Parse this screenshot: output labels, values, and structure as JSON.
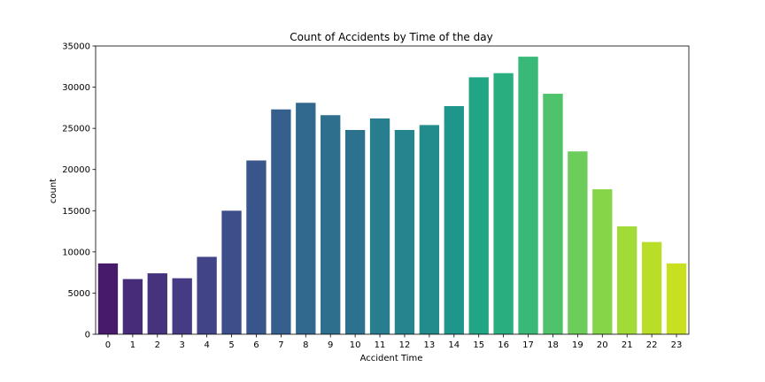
{
  "chart_data": {
    "type": "bar",
    "title": "Count of Accidents by Time of the day",
    "xlabel": "Accident Time",
    "ylabel": "count",
    "ylim": [
      0,
      35000
    ],
    "yticks": [
      "0",
      "5000",
      "10000",
      "15000",
      "20000",
      "25000",
      "30000",
      "35000"
    ],
    "grid": false,
    "categories": [
      "0",
      "1",
      "2",
      "3",
      "4",
      "5",
      "6",
      "7",
      "8",
      "9",
      "10",
      "11",
      "12",
      "13",
      "14",
      "15",
      "16",
      "17",
      "18",
      "19",
      "20",
      "21",
      "22",
      "23"
    ],
    "values": [
      8600,
      6700,
      7400,
      6800,
      9400,
      15000,
      21100,
      27300,
      28100,
      26600,
      24800,
      26200,
      24800,
      25400,
      27700,
      31200,
      31700,
      33700,
      29200,
      22200,
      17600,
      13100,
      11200,
      8600
    ],
    "colors": [
      "#481a6c",
      "#472c7a",
      "#46337e",
      "#443b84",
      "#414487",
      "#3c4f8a",
      "#39568c",
      "#355f8d",
      "#31688e",
      "#2e6f8e",
      "#2c728e",
      "#287d8e",
      "#25848e",
      "#228c8d",
      "#1f968b",
      "#21a685",
      "#29af7f",
      "#38b977",
      "#4ec36b",
      "#6ccd5a",
      "#86d549",
      "#a2da37",
      "#bade28",
      "#c8e020"
    ]
  }
}
